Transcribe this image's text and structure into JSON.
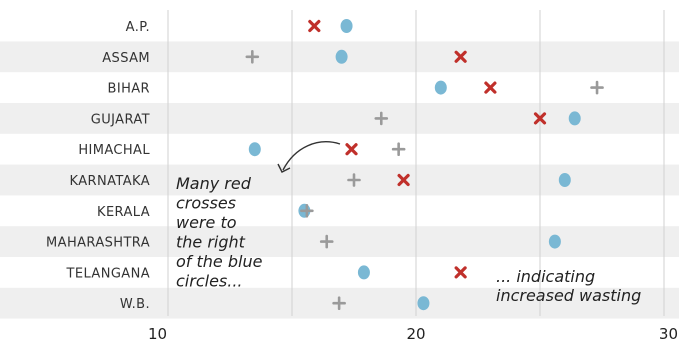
{
  "chart_data": {
    "type": "scatter",
    "title": "",
    "xlabel": "",
    "ylabel": "",
    "xlim": [
      10,
      30
    ],
    "xticks": [
      10,
      20,
      30
    ],
    "grid": true,
    "categories": [
      "A.P.",
      "ASSAM",
      "BIHAR",
      "GUJARAT",
      "HIMACHAL",
      "KARNATAKA",
      "KERALA",
      "MAHARASHTRA",
      "TELANGANA",
      "W.B."
    ],
    "series": [
      {
        "marker": "circle",
        "color": "#7ab8d4",
        "values": [
          17.2,
          17.0,
          21.0,
          26.4,
          13.5,
          26.0,
          15.5,
          25.6,
          17.9,
          20.3
        ]
      },
      {
        "marker": "cross",
        "color": "#c0302b",
        "values": [
          15.9,
          21.8,
          23.0,
          25.0,
          17.4,
          19.5,
          null,
          null,
          21.8,
          null
        ]
      },
      {
        "marker": "plus",
        "color": "#9a9a9a",
        "values": [
          null,
          13.4,
          27.3,
          18.6,
          19.3,
          17.5,
          15.6,
          16.4,
          null,
          16.9
        ]
      }
    ],
    "annotations": [
      {
        "lines": [
          "Many red",
          "crosses",
          "were to",
          "the right",
          "of the blue",
          "circles..."
        ]
      },
      {
        "lines": [
          "... indicating",
          "increased wasting"
        ]
      }
    ]
  },
  "colors": {
    "band": "#efefef",
    "grid": "#d2d2d2",
    "arrow": "#333333"
  }
}
